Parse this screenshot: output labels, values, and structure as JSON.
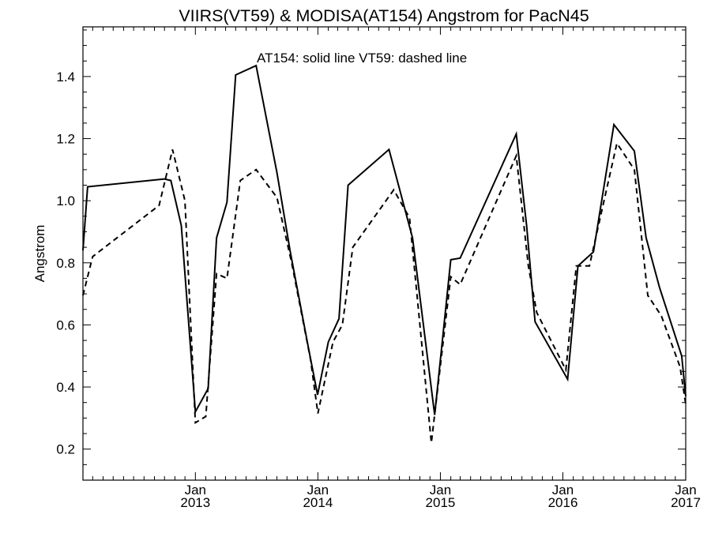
{
  "chart_data": {
    "type": "line",
    "title": "VIIRS(VT59) & MODISA(AT154)  Angstrom for PacN45",
    "annotation": "AT154: solid line   VT59: dashed line",
    "ylabel": "Angstrom",
    "xlabel": "",
    "xlim": [
      "2012-02-01",
      "2017-01-01"
    ],
    "ylim": [
      0.1,
      1.56
    ],
    "yticks": [
      0.2,
      0.4,
      0.6,
      0.8,
      1.0,
      1.2,
      1.4
    ],
    "ytick_labels": [
      "0.2",
      "0.4",
      "0.6",
      "0.8",
      "1.0",
      "1.2",
      "1.4"
    ],
    "xticks": [
      {
        "date": "2013-01-01",
        "month": "Jan",
        "year": "2013"
      },
      {
        "date": "2014-01-01",
        "month": "Jan",
        "year": "2014"
      },
      {
        "date": "2015-01-01",
        "month": "Jan",
        "year": "2015"
      },
      {
        "date": "2016-01-01",
        "month": "Jan",
        "year": "2016"
      },
      {
        "date": "2017-01-01",
        "month": "Jan",
        "year": "2017"
      }
    ],
    "series": [
      {
        "style": "solid",
        "points": [
          [
            "2012-02-01",
            0.84
          ],
          [
            "2012-02-15",
            1.045
          ],
          [
            "2012-10-01",
            1.07
          ],
          [
            "2012-10-20",
            1.065
          ],
          [
            "2012-11-20",
            0.92
          ],
          [
            "2013-01-01",
            0.32
          ],
          [
            "2013-02-08",
            0.395
          ],
          [
            "2013-03-05",
            0.88
          ],
          [
            "2013-04-05",
            0.995
          ],
          [
            "2013-05-01",
            1.405
          ],
          [
            "2013-07-01",
            1.435
          ],
          [
            "2013-09-01",
            1.09
          ],
          [
            "2013-10-10",
            0.84
          ],
          [
            "2013-12-05",
            0.52
          ],
          [
            "2013-12-31",
            0.375
          ],
          [
            "2014-02-01",
            0.545
          ],
          [
            "2014-03-05",
            0.62
          ],
          [
            "2014-04-01",
            1.05
          ],
          [
            "2014-08-01",
            1.165
          ],
          [
            "2014-10-10",
            0.88
          ],
          [
            "2014-12-15",
            0.31
          ],
          [
            "2015-02-01",
            0.81
          ],
          [
            "2015-03-01",
            0.815
          ],
          [
            "2015-08-15",
            1.215
          ],
          [
            "2015-09-15",
            0.92
          ],
          [
            "2015-10-10",
            0.61
          ],
          [
            "2016-01-15",
            0.425
          ],
          [
            "2016-02-15",
            0.79
          ],
          [
            "2016-04-01",
            0.835
          ],
          [
            "2016-06-01",
            1.245
          ],
          [
            "2016-08-01",
            1.16
          ],
          [
            "2016-09-05",
            0.88
          ],
          [
            "2016-10-15",
            0.72
          ],
          [
            "2016-12-20",
            0.5
          ],
          [
            "2017-01-01",
            0.37
          ]
        ]
      },
      {
        "style": "dashed",
        "points": [
          [
            "2012-02-01",
            0.695
          ],
          [
            "2012-03-01",
            0.82
          ],
          [
            "2012-09-15",
            0.985
          ],
          [
            "2012-10-25",
            1.165
          ],
          [
            "2012-12-01",
            1.0
          ],
          [
            "2013-01-01",
            0.285
          ],
          [
            "2013-02-01",
            0.305
          ],
          [
            "2013-03-05",
            0.765
          ],
          [
            "2013-04-05",
            0.75
          ],
          [
            "2013-05-15",
            1.065
          ],
          [
            "2013-07-01",
            1.1
          ],
          [
            "2013-09-01",
            1.01
          ],
          [
            "2013-10-15",
            0.8
          ],
          [
            "2013-12-10",
            0.49
          ],
          [
            "2014-01-01",
            0.315
          ],
          [
            "2014-02-15",
            0.545
          ],
          [
            "2014-03-15",
            0.6
          ],
          [
            "2014-04-15",
            0.85
          ],
          [
            "2014-08-15",
            1.035
          ],
          [
            "2014-10-01",
            0.945
          ],
          [
            "2014-12-05",
            0.22
          ],
          [
            "2015-02-01",
            0.755
          ],
          [
            "2015-03-01",
            0.73
          ],
          [
            "2015-08-15",
            1.145
          ],
          [
            "2015-09-20",
            0.79
          ],
          [
            "2015-10-15",
            0.64
          ],
          [
            "2016-01-10",
            0.455
          ],
          [
            "2016-02-10",
            0.79
          ],
          [
            "2016-03-20",
            0.79
          ],
          [
            "2016-06-10",
            1.185
          ],
          [
            "2016-08-01",
            1.1
          ],
          [
            "2016-09-10",
            0.695
          ],
          [
            "2016-10-20",
            0.63
          ],
          [
            "2016-12-15",
            0.465
          ],
          [
            "2017-01-01",
            0.345
          ]
        ]
      }
    ],
    "grid": false,
    "legend": "none"
  }
}
